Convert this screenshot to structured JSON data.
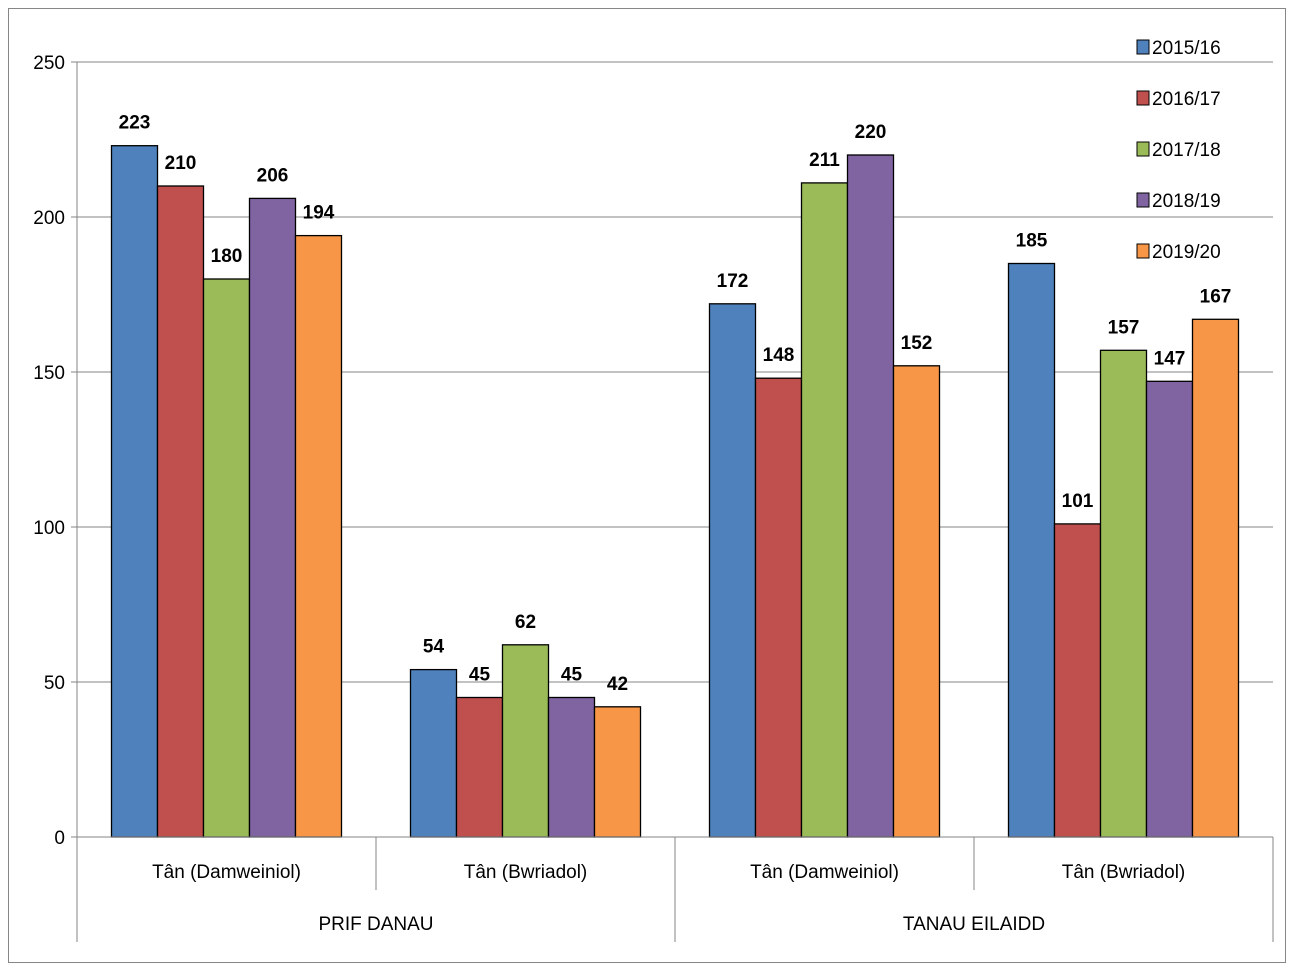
{
  "chart_data": {
    "type": "bar",
    "title": "",
    "xlabel": "",
    "ylabel": "",
    "ylim": [
      0,
      250
    ],
    "yticks": [
      0,
      50,
      100,
      150,
      200,
      250
    ],
    "grid": true,
    "legend_position": "top-right",
    "groups": [
      {
        "label": "PRIF DANAU",
        "categories": [
          "Tân (Damweiniol)",
          "Tân (Bwriadol)"
        ]
      },
      {
        "label": "TANAU EILAIDD",
        "categories": [
          "Tân (Damweiniol)",
          "Tân (Bwriadol)"
        ]
      }
    ],
    "categories": [
      "Tân (Damweiniol)",
      "Tân (Bwriadol)",
      "Tân (Damweiniol)",
      "Tân (Bwriadol)"
    ],
    "series": [
      {
        "name": "2015/16",
        "color": "#4F81BD",
        "values": [
          223,
          54,
          172,
          185
        ]
      },
      {
        "name": "2016/17",
        "color": "#C0504D",
        "values": [
          210,
          45,
          148,
          101
        ]
      },
      {
        "name": "2017/18",
        "color": "#9BBB59",
        "values": [
          180,
          62,
          211,
          157
        ]
      },
      {
        "name": "2018/19",
        "color": "#8064A2",
        "values": [
          206,
          45,
          220,
          147
        ]
      },
      {
        "name": "2019/20",
        "color": "#F79646",
        "values": [
          194,
          42,
          152,
          167
        ]
      }
    ]
  }
}
